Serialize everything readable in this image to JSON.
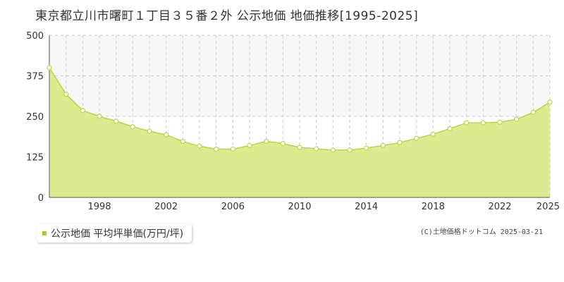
{
  "title": "東京都立川市曙町１丁目３５番２外 公示地価 地価推移[1995-2025]",
  "legend": {
    "label": "公示地価 平均坪単価(万円/坪)",
    "color": "#a6cc28"
  },
  "copyright": "(C)土地価格ドットコム 2025-03-21",
  "chart_data": {
    "type": "area",
    "title": "東京都立川市曙町１丁目３５番２外 公示地価 地価推移[1995-2025]",
    "xlabel": "",
    "ylabel": "",
    "xlim": [
      1995,
      2025
    ],
    "ylim": [
      0,
      500
    ],
    "yticks": [
      0,
      125,
      250,
      375,
      500
    ],
    "xticks": [
      1998,
      2002,
      2006,
      2010,
      2014,
      2018,
      2022,
      2025
    ],
    "grid": true,
    "colors": {
      "fill": "#dbeb8f",
      "line": "#b8d640",
      "marker_fill": "#ffffff",
      "band": "#f7f7f9"
    },
    "series": [
      {
        "name": "公示地価 平均坪単価(万円/坪)",
        "x": [
          1995,
          1996,
          1997,
          1998,
          1999,
          2000,
          2001,
          2002,
          2003,
          2004,
          2005,
          2006,
          2007,
          2008,
          2009,
          2010,
          2011,
          2012,
          2013,
          2014,
          2015,
          2016,
          2017,
          2018,
          2019,
          2020,
          2021,
          2022,
          2023,
          2024,
          2025
        ],
        "values": [
          400,
          318,
          268,
          250,
          235,
          218,
          204,
          193,
          173,
          158,
          149,
          149,
          160,
          173,
          166,
          154,
          150,
          146,
          146,
          152,
          160,
          169,
          182,
          195,
          212,
          230,
          230,
          232,
          241,
          262,
          294
        ]
      }
    ]
  }
}
